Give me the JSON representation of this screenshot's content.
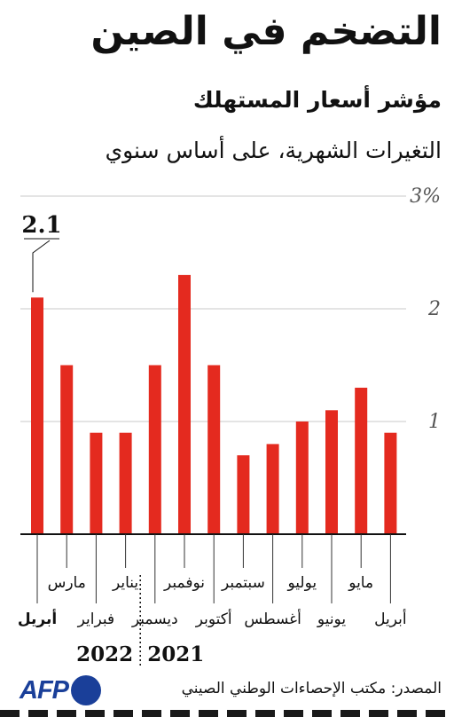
{
  "title": "التضخم في الصين",
  "subtitle": "مؤشر أسعار المستهلك",
  "unit_note": "التغيرات الشهرية، على أساس سنوي",
  "source": "المصدر: مكتب الإحصاءات الوطني الصيني",
  "logo": {
    "text": "AFP"
  },
  "colors": {
    "bar": "#e42a1f",
    "grid": "#c8c8c8",
    "axis": "#111111",
    "logo": "#1a3f99"
  },
  "chart_data": {
    "type": "bar",
    "categories": [
      "أبريل",
      "مارس",
      "فبراير",
      "يناير",
      "ديسمبر",
      "نوفمبر",
      "أكتوبر",
      "سبتمبر",
      "أغسطس",
      "يوليو",
      "يونيو",
      "مايو",
      "أبريل"
    ],
    "values": [
      2.1,
      1.5,
      0.9,
      0.9,
      1.5,
      2.3,
      1.5,
      0.7,
      0.8,
      1.0,
      1.1,
      1.3,
      0.9
    ],
    "ylim": [
      0,
      3
    ],
    "yticks": [
      {
        "value": 1,
        "label": "1"
      },
      {
        "value": 2,
        "label": "2"
      },
      {
        "value": 3,
        "label": "3%"
      }
    ],
    "annotation": {
      "label": "2.1",
      "index": 0
    },
    "years": [
      {
        "label": "2022",
        "from": 0,
        "to": 3
      },
      {
        "label": "2021",
        "from": 4,
        "to": 12
      }
    ],
    "grid": true,
    "order": "right-to-left in time; leftmost bar is the latest month"
  }
}
